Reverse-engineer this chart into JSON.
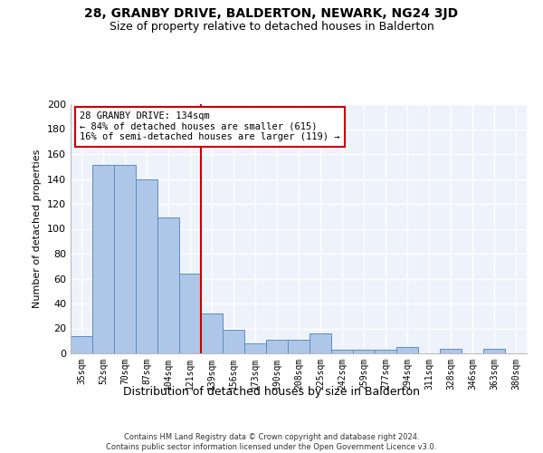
{
  "title": "28, GRANBY DRIVE, BALDERTON, NEWARK, NG24 3JD",
  "subtitle": "Size of property relative to detached houses in Balderton",
  "xlabel": "Distribution of detached houses by size in Balderton",
  "ylabel": "Number of detached properties",
  "categories": [
    "35sqm",
    "52sqm",
    "70sqm",
    "87sqm",
    "104sqm",
    "121sqm",
    "139sqm",
    "156sqm",
    "173sqm",
    "190sqm",
    "208sqm",
    "225sqm",
    "242sqm",
    "259sqm",
    "277sqm",
    "294sqm",
    "311sqm",
    "328sqm",
    "346sqm",
    "363sqm",
    "380sqm"
  ],
  "values": [
    14,
    151,
    151,
    140,
    109,
    64,
    32,
    19,
    8,
    11,
    11,
    16,
    3,
    3,
    3,
    5,
    0,
    4,
    0,
    4,
    0
  ],
  "bar_color": "#aec6e8",
  "bar_edge_color": "#5a8fc2",
  "reference_line_x": 5.5,
  "annotation_line1": "28 GRANBY DRIVE: 134sqm",
  "annotation_line2": "← 84% of detached houses are smaller (615)",
  "annotation_line3": "16% of semi-detached houses are larger (119) →",
  "annotation_box_color": "#ffffff",
  "annotation_box_edge_color": "#cc0000",
  "vline_color": "#cc0000",
  "ylim": [
    0,
    200
  ],
  "yticks": [
    0,
    20,
    40,
    60,
    80,
    100,
    120,
    140,
    160,
    180,
    200
  ],
  "background_color": "#eef2fb",
  "grid_color": "#ffffff",
  "footer_line1": "Contains HM Land Registry data © Crown copyright and database right 2024.",
  "footer_line2": "Contains public sector information licensed under the Open Government Licence v3.0.",
  "title_fontsize": 10,
  "subtitle_fontsize": 9
}
